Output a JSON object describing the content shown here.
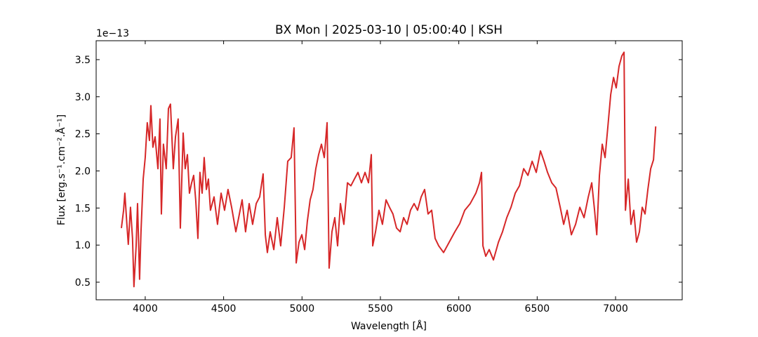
{
  "chart_data": {
    "type": "line",
    "title": "BX Mon | 2025-03-10 | 05:00:40 | KSH",
    "x_label": "Wavelength [Å]",
    "y_label": "Flux [erg.s⁻¹.cm⁻².Å⁻¹]",
    "y_offset_label": "1e−13",
    "x": [
      3848,
      3862,
      3870,
      3883,
      3892,
      3906,
      3919,
      3928,
      3942,
      3951,
      3964,
      3973,
      3987,
      4000,
      4013,
      4027,
      4036,
      4049,
      4063,
      4081,
      4094,
      4103,
      4116,
      4134,
      4148,
      4161,
      4179,
      4193,
      4210,
      4224,
      4242,
      4255,
      4269,
      4282,
      4296,
      4309,
      4322,
      4336,
      4349,
      4363,
      4376,
      4390,
      4403,
      4416,
      4439,
      4461,
      4484,
      4506,
      4528,
      4551,
      4578,
      4596,
      4618,
      4640,
      4663,
      4685,
      4708,
      4730,
      4752,
      4766,
      4779,
      4797,
      4820,
      4842,
      4864,
      4887,
      4909,
      4931,
      4949,
      4963,
      4981,
      4999,
      5017,
      5034,
      5052,
      5070,
      5088,
      5106,
      5124,
      5142,
      5160,
      5173,
      5191,
      5209,
      5227,
      5245,
      5267,
      5290,
      5312,
      5334,
      5357,
      5379,
      5402,
      5424,
      5442,
      5451,
      5469,
      5491,
      5513,
      5536,
      5558,
      5580,
      5603,
      5626,
      5648,
      5670,
      5692,
      5715,
      5737,
      5760,
      5782,
      5804,
      5827,
      5849,
      5872,
      5903,
      5939,
      5975,
      6006,
      6038,
      6073,
      6109,
      6132,
      6145,
      6154,
      6172,
      6194,
      6221,
      6253,
      6279,
      6306,
      6333,
      6360,
      6387,
      6414,
      6441,
      6468,
      6494,
      6521,
      6544,
      6566,
      6593,
      6620,
      6647,
      6669,
      6691,
      6718,
      6745,
      6772,
      6799,
      6826,
      6848,
      6866,
      6880,
      6897,
      6915,
      6933,
      6951,
      6969,
      6987,
      7004,
      7022,
      7040,
      7054,
      7063,
      7081,
      7098,
      7116,
      7134,
      7152,
      7170,
      7188,
      7206,
      7224,
      7242,
      7256
    ],
    "series": [
      {
        "color": "#d62728",
        "values": [
          1.23,
          1.47,
          1.7,
          1.28,
          1.01,
          1.51,
          1.09,
          0.44,
          0.99,
          1.56,
          0.54,
          1.18,
          1.89,
          2.18,
          2.65,
          2.41,
          2.88,
          2.32,
          2.46,
          2.03,
          2.7,
          1.42,
          2.36,
          2.03,
          2.84,
          2.9,
          2.03,
          2.46,
          2.7,
          1.23,
          2.51,
          2.03,
          2.22,
          1.7,
          1.84,
          1.94,
          1.61,
          1.09,
          1.98,
          1.7,
          2.18,
          1.75,
          1.89,
          1.47,
          1.65,
          1.28,
          1.7,
          1.47,
          1.75,
          1.51,
          1.18,
          1.37,
          1.61,
          1.18,
          1.56,
          1.28,
          1.56,
          1.65,
          1.96,
          1.14,
          0.9,
          1.18,
          0.94,
          1.37,
          0.99,
          1.51,
          2.13,
          2.18,
          2.58,
          0.76,
          1.04,
          1.14,
          0.94,
          1.32,
          1.61,
          1.75,
          2.03,
          2.22,
          2.36,
          2.18,
          2.65,
          0.69,
          1.18,
          1.37,
          0.99,
          1.56,
          1.28,
          1.84,
          1.8,
          1.89,
          1.98,
          1.84,
          1.98,
          1.84,
          2.22,
          0.99,
          1.18,
          1.47,
          1.28,
          1.61,
          1.51,
          1.42,
          1.23,
          1.18,
          1.37,
          1.28,
          1.47,
          1.56,
          1.47,
          1.65,
          1.75,
          1.42,
          1.47,
          1.09,
          0.99,
          0.9,
          1.04,
          1.18,
          1.29,
          1.47,
          1.56,
          1.7,
          1.84,
          1.98,
          0.99,
          0.85,
          0.94,
          0.8,
          1.04,
          1.18,
          1.37,
          1.51,
          1.7,
          1.8,
          2.03,
          1.94,
          2.13,
          1.98,
          2.27,
          2.13,
          1.98,
          1.84,
          1.77,
          1.51,
          1.28,
          1.47,
          1.14,
          1.28,
          1.51,
          1.37,
          1.65,
          1.84,
          1.47,
          1.14,
          1.94,
          2.36,
          2.18,
          2.6,
          3.03,
          3.26,
          3.12,
          3.41,
          3.55,
          3.6,
          1.47,
          1.89,
          1.28,
          1.47,
          1.04,
          1.18,
          1.51,
          1.42,
          1.75,
          2.03,
          2.15,
          2.6
        ]
      }
    ],
    "xlim": [
      3687,
      7425
    ],
    "ylim": [
      0.263,
      3.755
    ],
    "xticks": [
      4000,
      4500,
      5000,
      5500,
      6000,
      6500,
      7000
    ],
    "yticks": [
      0.5,
      {
        "value": 1,
        "label": "1.0"
      },
      1.5,
      {
        "value": 2,
        "label": "2.0"
      },
      2.5,
      {
        "value": 3,
        "label": "3.0"
      },
      3.5
    ],
    "tick_direction": "in",
    "mirror_ticks": true
  }
}
